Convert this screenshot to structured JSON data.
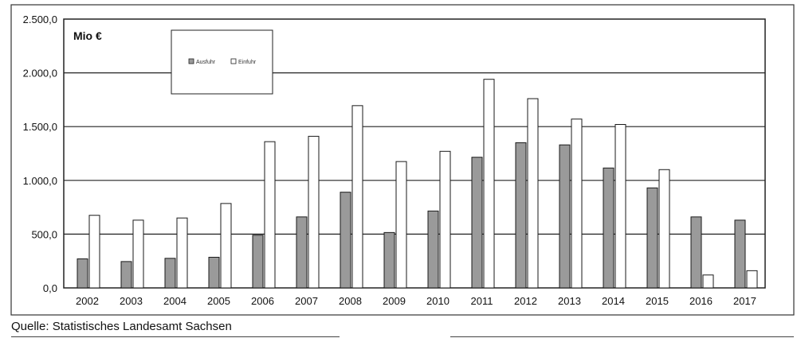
{
  "chart_data": {
    "type": "bar",
    "unit_label": "Mio €",
    "categories": [
      "2002",
      "2003",
      "2004",
      "2005",
      "2006",
      "2007",
      "2008",
      "2009",
      "2010",
      "2011",
      "2012",
      "2013",
      "2014",
      "2015",
      "2016",
      "2017"
    ],
    "series": [
      {
        "name": "Ausfuhr",
        "color": "#9a9a9a",
        "values": [
          270,
          245,
          275,
          285,
          490,
          660,
          890,
          515,
          715,
          1215,
          1350,
          1330,
          1115,
          930,
          660,
          630
        ]
      },
      {
        "name": "Einfuhr",
        "color": "#ffffff",
        "values": [
          675,
          630,
          650,
          785,
          1360,
          1410,
          1695,
          1175,
          1270,
          1940,
          1760,
          1570,
          1520,
          1100,
          120,
          160
        ]
      }
    ],
    "yticks": [
      "0,0",
      "500,0",
      "1.000,0",
      "1.500,0",
      "2.000,0",
      "2.500,0"
    ],
    "ylim": [
      0,
      2500
    ],
    "grid": true,
    "legend_position": "top-left"
  },
  "source": "Quelle: Statistisches Landesamt Sachsen"
}
